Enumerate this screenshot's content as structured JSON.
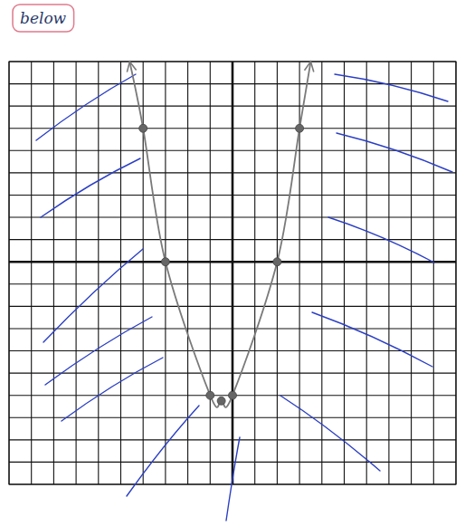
{
  "chart_data": {
    "type": "line",
    "title": "below",
    "x": [
      -4.6,
      -4,
      -3,
      -1,
      -0.5,
      0,
      2,
      3,
      3.5
    ],
    "series": [
      {
        "color": "#7a7a7a",
        "line_style": "solid",
        "marker": "none",
        "values": [
          9,
          6,
          0,
          -6,
          -6.25,
          -6,
          0,
          6,
          9
        ]
      },
      {
        "type": "scatter",
        "color": "#666666",
        "marker": "circle",
        "x": [
          -4,
          -3,
          -1,
          -0.5,
          0,
          2,
          3
        ],
        "values": [
          6,
          0,
          -6,
          -6.25,
          -6,
          0,
          6
        ]
      }
    ],
    "xlim": [
      -10,
      10
    ],
    "ylim": [
      -10,
      9
    ],
    "xticks": [
      -10,
      -9,
      -8,
      -7,
      -6,
      -5,
      -4,
      -3,
      -2,
      -1,
      0,
      1,
      2,
      3,
      4,
      5,
      6,
      7,
      8,
      9,
      10
    ],
    "yticks": [
      -10,
      -9,
      -8,
      -7,
      -6,
      -5,
      -4,
      -3,
      -2,
      -1,
      0,
      1,
      2,
      3,
      4,
      5,
      6,
      7,
      8,
      9
    ],
    "grid": true,
    "tick_labels": false
  }
}
